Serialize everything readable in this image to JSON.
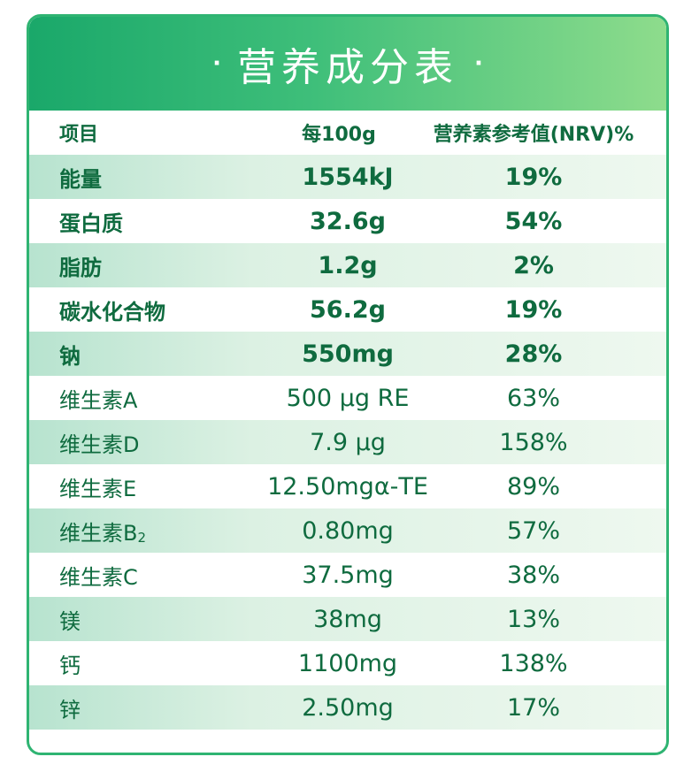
{
  "title": "营养成分表",
  "title_dot": "·",
  "headers": {
    "item": "项目",
    "per100g": "每100g",
    "nrv": "营养素参考值(NRV)%"
  },
  "rows": [
    {
      "item": "能量",
      "value": "1554kJ",
      "nrv": "19%",
      "bold": true,
      "shaded": true
    },
    {
      "item": "蛋白质",
      "value": "32.6g",
      "nrv": "54%",
      "bold": true,
      "shaded": false
    },
    {
      "item": "脂肪",
      "value": "1.2g",
      "nrv": "2%",
      "bold": true,
      "shaded": true
    },
    {
      "item": "碳水化合物",
      "value": "56.2g",
      "nrv": "19%",
      "bold": true,
      "shaded": false
    },
    {
      "item": "钠",
      "value": "550mg",
      "nrv": "28%",
      "bold": true,
      "shaded": true
    },
    {
      "item": "维生素A",
      "value": "500 μg RE",
      "nrv": "63%",
      "bold": false,
      "shaded": false
    },
    {
      "item": "维生素D",
      "value": "7.9 μg",
      "nrv": "158%",
      "bold": false,
      "shaded": true
    },
    {
      "item": "维生素E",
      "value": "12.50mgα-TE",
      "nrv": "89%",
      "bold": false,
      "shaded": false
    },
    {
      "item": "维生素B",
      "item_sub": "2",
      "value": "0.80mg",
      "nrv": "57%",
      "bold": false,
      "shaded": true
    },
    {
      "item": "维生素C",
      "value": "37.5mg",
      "nrv": "38%",
      "bold": false,
      "shaded": false
    },
    {
      "item": "镁",
      "value": "38mg",
      "nrv": "13%",
      "bold": false,
      "shaded": true
    },
    {
      "item": "钙",
      "value": "1100mg",
      "nrv": "138%",
      "bold": false,
      "shaded": false
    },
    {
      "item": "锌",
      "value": "2.50mg",
      "nrv": "17%",
      "bold": false,
      "shaded": true
    }
  ],
  "colors": {
    "header_start": "#1aa86a",
    "header_end": "#8edc8c",
    "text": "#0f6b3f",
    "border": "#2fb472"
  }
}
